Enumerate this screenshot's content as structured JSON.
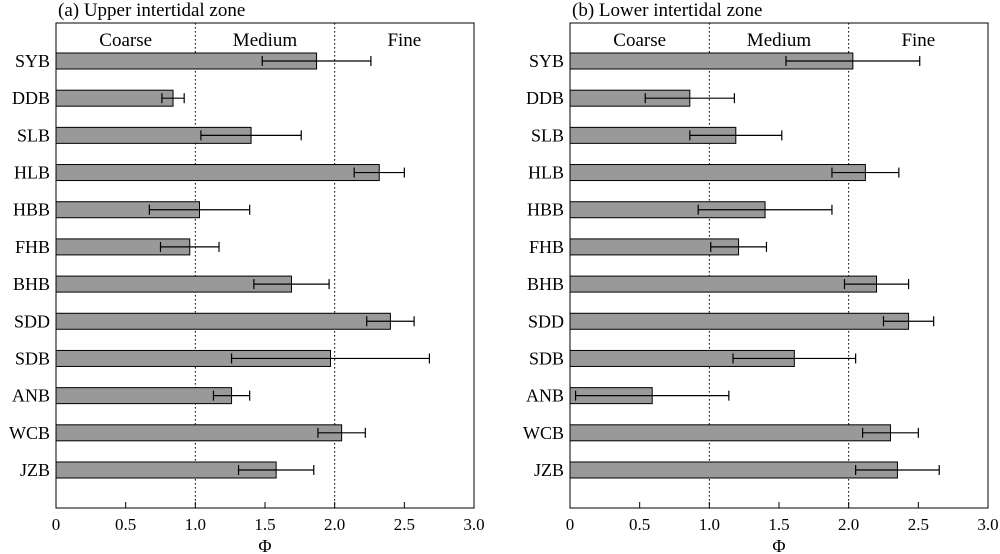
{
  "chart_data": [
    {
      "type": "bar",
      "orientation": "horizontal",
      "title": "(a) Upper intertidal zone",
      "xlabel": "Φ",
      "xlim": [
        0,
        3.0
      ],
      "xticks": [
        "0",
        "0.5",
        "1.0",
        "1.5",
        "2.0",
        "2.5",
        "3.0"
      ],
      "zones": [
        "Coarse",
        "Medium",
        "Fine"
      ],
      "zone_boundaries": [
        1.0,
        2.0
      ],
      "bar_color": "#999999",
      "categories": [
        "SYB",
        "DDB",
        "SLB",
        "HLB",
        "HBB",
        "FHB",
        "BHB",
        "SDD",
        "SDB",
        "ANB",
        "WCB",
        "JZB"
      ],
      "values": [
        1.87,
        0.84,
        1.4,
        2.32,
        1.03,
        0.96,
        1.69,
        2.4,
        1.97,
        1.26,
        2.05,
        1.58
      ],
      "errors": [
        0.39,
        0.08,
        0.36,
        0.18,
        0.36,
        0.21,
        0.27,
        0.17,
        0.71,
        0.13,
        0.17,
        0.27
      ]
    },
    {
      "type": "bar",
      "orientation": "horizontal",
      "title": "(b) Lower intertidal zone",
      "xlabel": "Φ",
      "xlim": [
        0,
        3.0
      ],
      "xticks": [
        "0",
        "0.5",
        "1.0",
        "1.5",
        "2.0",
        "2.5",
        "3.0"
      ],
      "zones": [
        "Coarse",
        "Medium",
        "Fine"
      ],
      "zone_boundaries": [
        1.0,
        2.0
      ],
      "bar_color": "#999999",
      "categories": [
        "SYB",
        "DDB",
        "SLB",
        "HLB",
        "HBB",
        "FHB",
        "BHB",
        "SDD",
        "SDB",
        "ANB",
        "WCB",
        "JZB"
      ],
      "values": [
        2.03,
        0.86,
        1.19,
        2.12,
        1.4,
        1.21,
        2.2,
        2.43,
        1.61,
        0.59,
        2.3,
        2.35
      ],
      "errors": [
        0.48,
        0.32,
        0.33,
        0.24,
        0.48,
        0.2,
        0.23,
        0.18,
        0.44,
        0.55,
        0.2,
        0.3
      ]
    }
  ]
}
